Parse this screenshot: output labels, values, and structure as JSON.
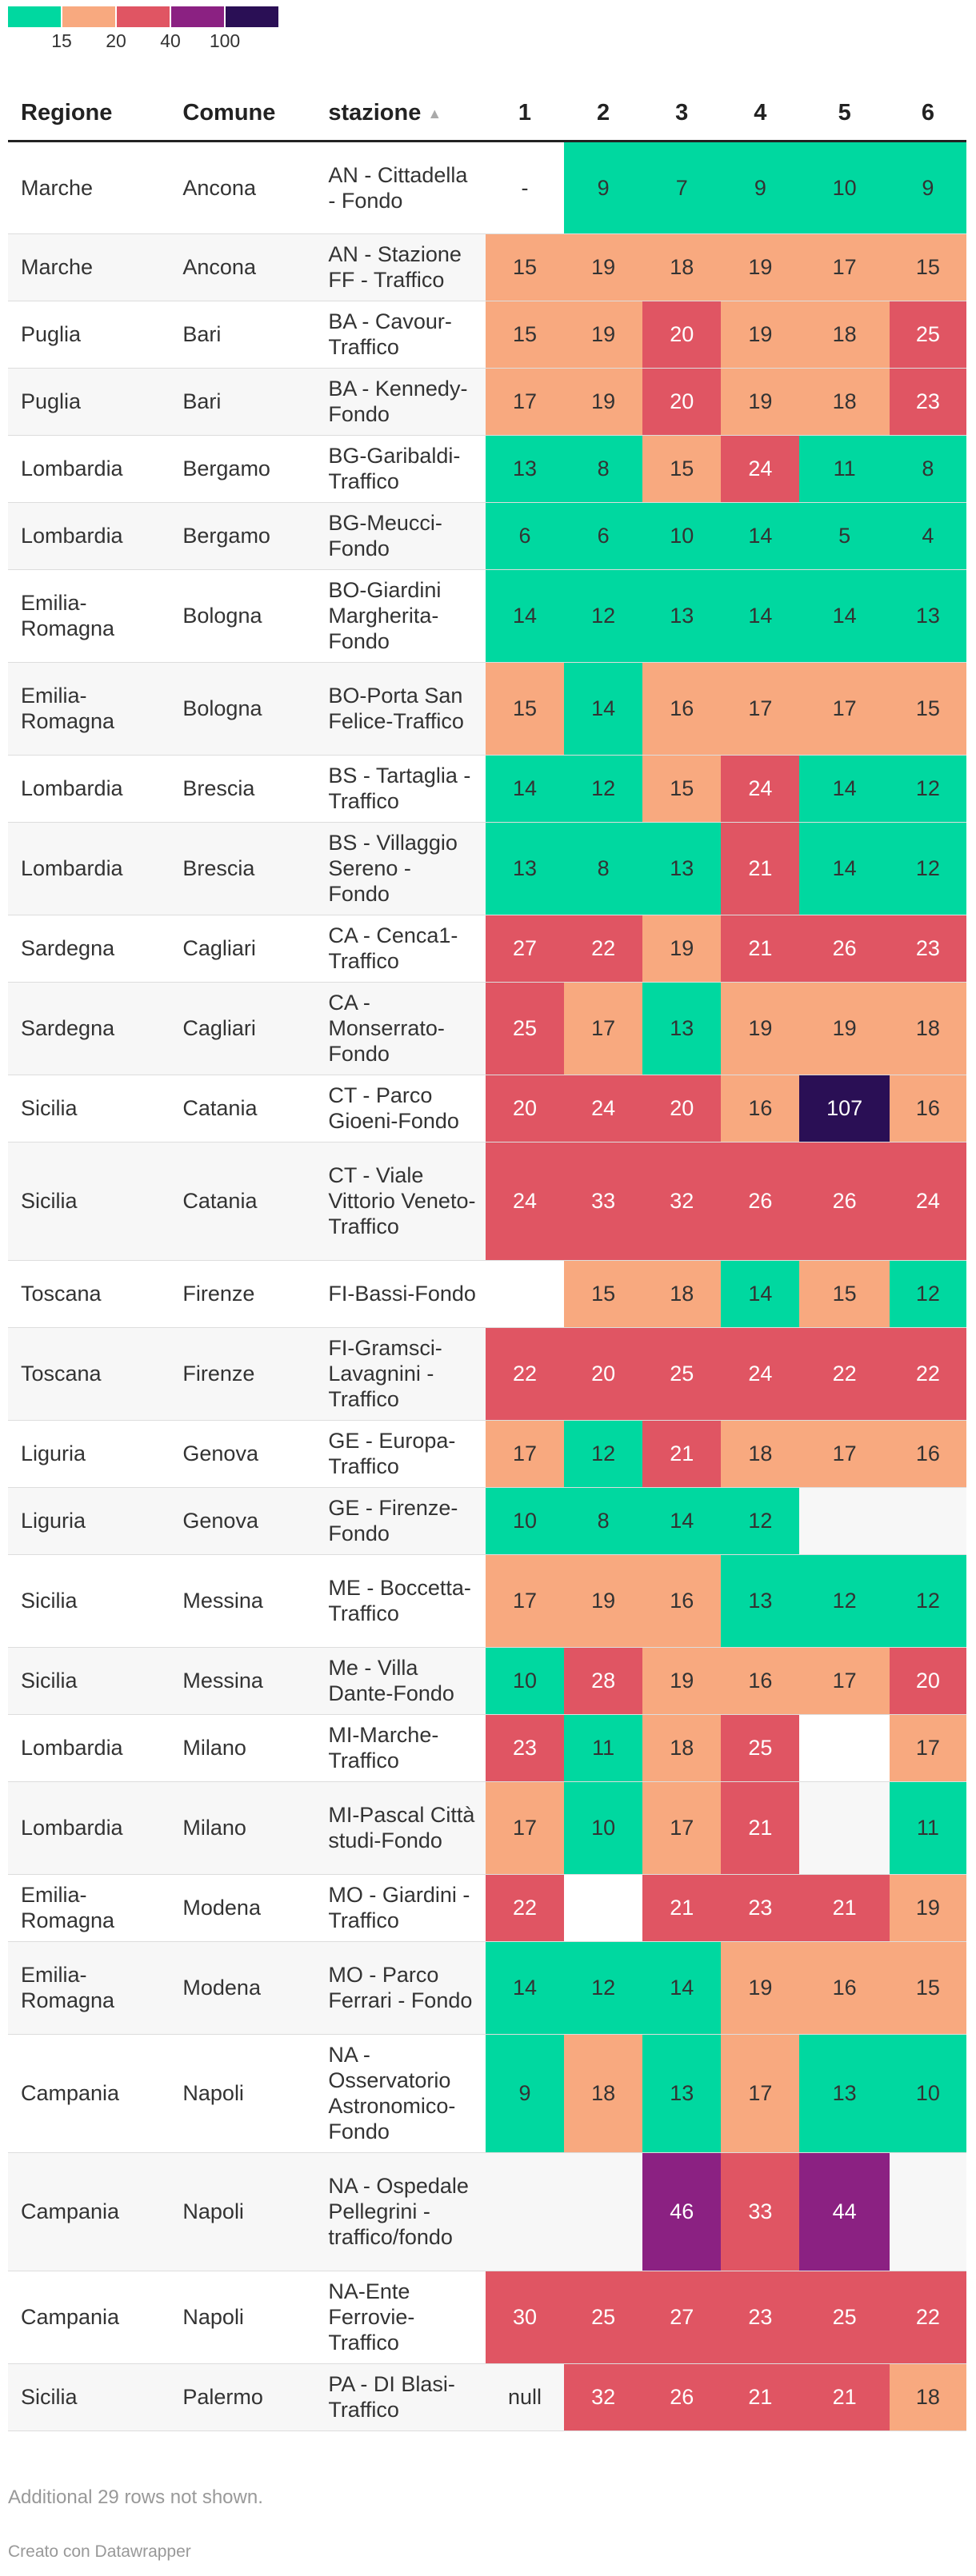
{
  "colors": {
    "green": "#00d8a0",
    "orange": "#f8a97f",
    "red": "#e05563",
    "purple": "#8b2182",
    "navy": "#2a0f55",
    "empty": "#f7f7f7"
  },
  "legend": {
    "segments": [
      "#00d8a0",
      "#f8a97f",
      "#e05563",
      "#8b2182",
      "#2a0f55"
    ],
    "ticks": [
      "15",
      "20",
      "40",
      "100"
    ]
  },
  "table": {
    "columns": [
      "Regione",
      "Comune",
      "stazione",
      "1",
      "2",
      "3",
      "4",
      "5",
      "6"
    ],
    "sort_icon": "sort-ascending-icon",
    "rows": [
      {
        "regione": "Marche",
        "comune": "Ancona",
        "stazione": "AN - Cittadella - Fondo",
        "values": [
          "-",
          "9",
          "7",
          "9",
          "10",
          "9"
        ]
      },
      {
        "regione": "Marche",
        "comune": "Ancona",
        "stazione": "AN - Stazione FF - Traffico",
        "values": [
          "15",
          "19",
          "18",
          "19",
          "17",
          "15"
        ]
      },
      {
        "regione": "Puglia",
        "comune": "Bari",
        "stazione": "BA - Cavour-Traffico",
        "values": [
          "15",
          "19",
          "20",
          "19",
          "18",
          "25"
        ]
      },
      {
        "regione": "Puglia",
        "comune": "Bari",
        "stazione": "BA - Kennedy-Fondo",
        "values": [
          "17",
          "19",
          "20",
          "19",
          "18",
          "23"
        ]
      },
      {
        "regione": "Lombardia",
        "comune": "Bergamo",
        "stazione": "BG-Garibaldi-Traffico",
        "values": [
          "13",
          "8",
          "15",
          "24",
          "11",
          "8"
        ]
      },
      {
        "regione": "Lombardia",
        "comune": "Bergamo",
        "stazione": "BG-Meucci-Fondo",
        "values": [
          "6",
          "6",
          "10",
          "14",
          "5",
          "4"
        ]
      },
      {
        "regione": "Emilia-Romagna",
        "comune": "Bologna",
        "stazione": "BO-Giardini Margherita-Fondo",
        "values": [
          "14",
          "12",
          "13",
          "14",
          "14",
          "13"
        ]
      },
      {
        "regione": "Emilia-Romagna",
        "comune": "Bologna",
        "stazione": "BO-Porta San Felice-Traffico",
        "values": [
          "15",
          "14",
          "16",
          "17",
          "17",
          "15"
        ]
      },
      {
        "regione": "Lombardia",
        "comune": "Brescia",
        "stazione": "BS - Tartaglia - Traffico",
        "values": [
          "14",
          "12",
          "15",
          "24",
          "14",
          "12"
        ]
      },
      {
        "regione": "Lombardia",
        "comune": "Brescia",
        "stazione": "BS - Villaggio Sereno - Fondo",
        "values": [
          "13",
          "8",
          "13",
          "21",
          "14",
          "12"
        ]
      },
      {
        "regione": "Sardegna",
        "comune": "Cagliari",
        "stazione": "CA - Cenca1-Traffico",
        "values": [
          "27",
          "22",
          "19",
          "21",
          "26",
          "23"
        ]
      },
      {
        "regione": "Sardegna",
        "comune": "Cagliari",
        "stazione": "CA - Monserrato-Fondo",
        "values": [
          "25",
          "17",
          "13",
          "19",
          "19",
          "18"
        ]
      },
      {
        "regione": "Sicilia",
        "comune": "Catania",
        "stazione": "CT - Parco Gioeni-Fondo",
        "values": [
          "20",
          "24",
          "20",
          "16",
          "107",
          "16"
        ]
      },
      {
        "regione": "Sicilia",
        "comune": "Catania",
        "stazione": "CT - Viale Vittorio Veneto-Traffico",
        "values": [
          "24",
          "33",
          "32",
          "26",
          "26",
          "24"
        ]
      },
      {
        "regione": "Toscana",
        "comune": "Firenze",
        "stazione": "FI-Bassi-Fondo",
        "values": [
          "",
          "15",
          "18",
          "14",
          "15",
          "12"
        ]
      },
      {
        "regione": "Toscana",
        "comune": "Firenze",
        "stazione": "FI-Gramsci-Lavagnini - Traffico",
        "values": [
          "22",
          "20",
          "25",
          "24",
          "22",
          "22"
        ]
      },
      {
        "regione": "Liguria",
        "comune": "Genova",
        "stazione": "GE - Europa-Traffico",
        "values": [
          "17",
          "12",
          "21",
          "18",
          "17",
          "16"
        ]
      },
      {
        "regione": "Liguria",
        "comune": "Genova",
        "stazione": "GE - Firenze-Fondo",
        "values": [
          "10",
          "8",
          "14",
          "12",
          "",
          ""
        ]
      },
      {
        "regione": "Sicilia",
        "comune": "Messina",
        "stazione": "ME - Boccetta-Traffico",
        "values": [
          "17",
          "19",
          "16",
          "13",
          "12",
          "12"
        ]
      },
      {
        "regione": "Sicilia",
        "comune": "Messina",
        "stazione": "Me - Villa Dante-Fondo",
        "values": [
          "10",
          "28",
          "19",
          "16",
          "17",
          "20"
        ]
      },
      {
        "regione": "Lombardia",
        "comune": "Milano",
        "stazione": "MI-Marche-Traffico",
        "values": [
          "23",
          "11",
          "18",
          "25",
          "",
          "17"
        ]
      },
      {
        "regione": "Lombardia",
        "comune": "Milano",
        "stazione": "MI-Pascal Città studi-Fondo",
        "values": [
          "17",
          "10",
          "17",
          "21",
          "",
          "11"
        ]
      },
      {
        "regione": "Emilia-Romagna",
        "comune": "Modena",
        "stazione": "MO - Giardini - Traffico",
        "values": [
          "22",
          "",
          "21",
          "23",
          "21",
          "19"
        ]
      },
      {
        "regione": "Emilia-Romagna",
        "comune": "Modena",
        "stazione": "MO - Parco Ferrari - Fondo",
        "values": [
          "14",
          "12",
          "14",
          "19",
          "16",
          "15"
        ]
      },
      {
        "regione": "Campania",
        "comune": "Napoli",
        "stazione": "NA - Osservatorio Astronomico-Fondo",
        "values": [
          "9",
          "18",
          "13",
          "17",
          "13",
          "10"
        ]
      },
      {
        "regione": "Campania",
        "comune": "Napoli",
        "stazione": "NA - Ospedale Pellegrini - traffico/fondo",
        "values": [
          "",
          "",
          "46",
          "33",
          "44",
          ""
        ]
      },
      {
        "regione": "Campania",
        "comune": "Napoli",
        "stazione": "NA-Ente Ferrovie-Traffico",
        "values": [
          "30",
          "25",
          "27",
          "23",
          "25",
          "22"
        ]
      },
      {
        "regione": "Sicilia",
        "comune": "Palermo",
        "stazione": "PA - DI Blasi-Traffico",
        "values": [
          "null",
          "32",
          "26",
          "21",
          "21",
          "18"
        ]
      }
    ]
  },
  "footnote": "Additional 29 rows not shown.",
  "credit": "Creato con Datawrapper"
}
